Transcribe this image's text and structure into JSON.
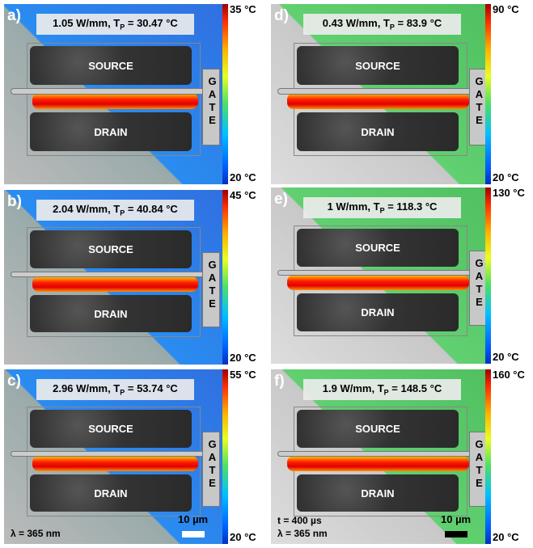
{
  "panels": [
    {
      "label": "a)",
      "caption": {
        "power": "1.05 W/mm, T",
        "sub": "P",
        "temp": " = 30.47 °C"
      },
      "scale_max": "35 °C",
      "scale_min": "20 °C",
      "source": "SOURCE",
      "drain": "DRAIN",
      "gate": "GATE"
    },
    {
      "label": "b)",
      "caption": {
        "power": "2.04 W/mm, T",
        "sub": "P",
        "temp": " = 40.84 °C"
      },
      "scale_max": "45 °C",
      "scale_min": "20 °C",
      "source": "SOURCE",
      "drain": "DRAIN",
      "gate": "GATE"
    },
    {
      "label": "c)",
      "caption": {
        "power": "2.96 W/mm, T",
        "sub": "P",
        "temp": " = 53.74 °C"
      },
      "scale_max": "55 °C",
      "scale_min": "20 °C",
      "source": "SOURCE",
      "drain": "DRAIN",
      "gate": "GATE",
      "notes": [
        "λ = 365 nm"
      ],
      "scalebar": "10 µm"
    },
    {
      "label": "d)",
      "caption": {
        "power": "0.43 W/mm, T",
        "sub": "P",
        "temp": " = 83.9 °C"
      },
      "scale_max": "90 °C",
      "scale_min": "20 °C",
      "source": "SOURCE",
      "drain": "DRAIN",
      "gate": "GATE"
    },
    {
      "label": "e)",
      "caption": {
        "power": "1 W/mm, T",
        "sub": "P",
        "temp": " = 118.3 °C"
      },
      "scale_max": "130 °C",
      "scale_min": "20 °C",
      "source": "SOURCE",
      "drain": "DRAIN",
      "gate": "GATE"
    },
    {
      "label": "f)",
      "caption": {
        "power": "1.9 W/mm, T",
        "sub": "P",
        "temp": " = 148.5 °C"
      },
      "scale_max": "160 °C",
      "scale_min": "20 °C",
      "source": "SOURCE",
      "drain": "DRAIN",
      "gate": "GATE",
      "notes": [
        "t = 400 µs",
        "λ = 365 nm"
      ],
      "scalebar": "10 µm"
    }
  ]
}
